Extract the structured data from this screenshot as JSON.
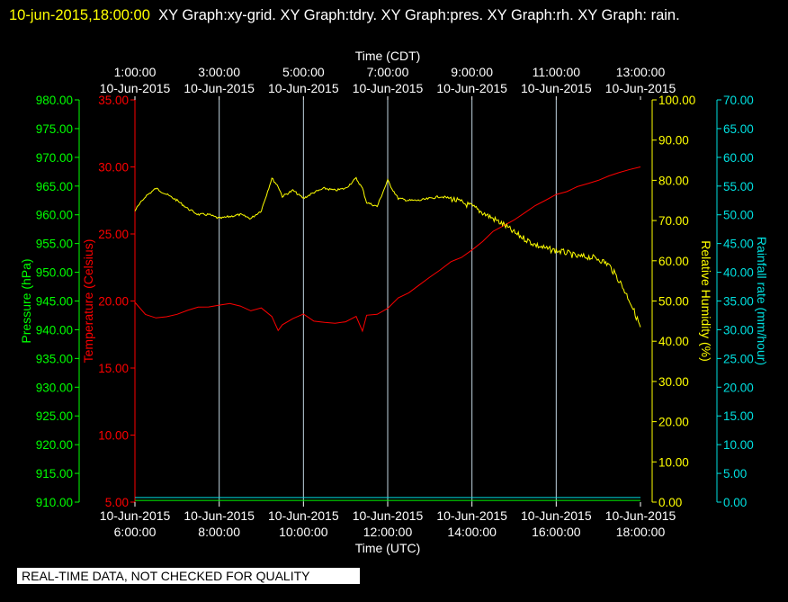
{
  "header": {
    "timestamp": "10-jun-2015,18:00:00",
    "graphs": "XY Graph:xy-grid.  XY Graph:tdry.  XY Graph:pres.  XY Graph:rh.  XY Graph: rain."
  },
  "banner": "REAL-TIME DATA, NOT CHECKED FOR QUALITY",
  "colors": {
    "background": "#000000",
    "grid": "#c0d4e0",
    "temperature": "#ff0000",
    "pressure": "#00ff00",
    "humidity": "#ffff00",
    "rain": "#00e0e0",
    "text": "#ffffff"
  },
  "chart_data": {
    "type": "line",
    "top_axis": {
      "title": "Time (CDT)",
      "ticks": [
        {
          "time": "1:00:00",
          "date": "10-Jun-2015"
        },
        {
          "time": "3:00:00",
          "date": "10-Jun-2015"
        },
        {
          "time": "5:00:00",
          "date": "10-Jun-2015"
        },
        {
          "time": "7:00:00",
          "date": "10-Jun-2015"
        },
        {
          "time": "9:00:00",
          "date": "10-Jun-2015"
        },
        {
          "time": "11:00:00",
          "date": "10-Jun-2015"
        },
        {
          "time": "13:00:00",
          "date": "10-Jun-2015"
        }
      ]
    },
    "bottom_axis": {
      "title": "Time (UTC)",
      "range": [
        6,
        18
      ],
      "tick_values": [
        6,
        8,
        10,
        12,
        14,
        16,
        18
      ],
      "ticks": [
        {
          "date": "10-Jun-2015",
          "time": "6:00:00"
        },
        {
          "date": "10-Jun-2015",
          "time": "8:00:00"
        },
        {
          "date": "10-Jun-2015",
          "time": "10:00:00"
        },
        {
          "date": "10-Jun-2015",
          "time": "12:00:00"
        },
        {
          "date": "10-Jun-2015",
          "time": "14:00:00"
        },
        {
          "date": "10-Jun-2015",
          "time": "16:00:00"
        },
        {
          "date": "10-Jun-2015",
          "time": "18:00:00"
        }
      ]
    },
    "grid": true,
    "axes": {
      "pressure": {
        "label": "Pressure (hPa)",
        "range": [
          910,
          980
        ],
        "ticks": [
          "980.00",
          "975.00",
          "970.00",
          "965.00",
          "960.00",
          "955.00",
          "950.00",
          "945.00",
          "940.00",
          "935.00",
          "930.00",
          "925.00",
          "920.00",
          "915.00",
          "910.00"
        ]
      },
      "temperature": {
        "label": "Temperature (Celsius)",
        "range": [
          5,
          35
        ],
        "ticks": [
          "35.00",
          "30.00",
          "25.00",
          "20.00",
          "15.00",
          "10.00",
          "5.00"
        ]
      },
      "humidity": {
        "label": "Relative Humidity (%)",
        "range": [
          0,
          100
        ],
        "ticks": [
          "100.00",
          "90.00",
          "80.00",
          "70.00",
          "60.00",
          "50.00",
          "40.00",
          "30.00",
          "20.00",
          "10.00",
          "0.00"
        ]
      },
      "rain": {
        "label": "Rainfall rate (mm/hour)",
        "range": [
          0,
          70
        ],
        "ticks": [
          "70.00",
          "65.00",
          "60.00",
          "55.00",
          "50.00",
          "45.00",
          "40.00",
          "35.00",
          "30.00",
          "25.00",
          "20.00",
          "15.00",
          "10.00",
          "5.00",
          "0.00"
        ]
      }
    },
    "series": [
      {
        "key": "temperature",
        "axis": "temperature",
        "x": [
          6.0,
          6.25,
          6.5,
          6.75,
          7.0,
          7.25,
          7.5,
          7.75,
          8.0,
          8.25,
          8.5,
          8.75,
          9.0,
          9.25,
          9.4,
          9.5,
          9.75,
          10.0,
          10.25,
          10.5,
          10.75,
          11.0,
          11.25,
          11.4,
          11.5,
          11.75,
          12.0,
          12.25,
          12.5,
          12.75,
          13.0,
          13.25,
          13.5,
          13.75,
          14.0,
          14.25,
          14.5,
          14.75,
          15.0,
          15.25,
          15.5,
          15.75,
          16.0,
          16.25,
          16.5,
          16.75,
          17.0,
          17.25,
          17.5,
          17.75,
          18.0
        ],
        "y": [
          19.9,
          19.0,
          18.7,
          18.8,
          19.0,
          19.3,
          19.5,
          19.6,
          19.7,
          19.8,
          19.6,
          19.3,
          19.5,
          18.8,
          17.8,
          18.2,
          18.7,
          19.0,
          18.5,
          18.4,
          18.3,
          18.4,
          18.9,
          17.8,
          18.9,
          19.0,
          19.5,
          20.2,
          20.6,
          21.2,
          21.8,
          22.3,
          22.9,
          23.3,
          23.8,
          24.4,
          25.2,
          25.6,
          26.0,
          26.6,
          27.1,
          27.5,
          27.9,
          28.2,
          28.5,
          28.8,
          29.0,
          29.3,
          29.6,
          29.8,
          30.0
        ]
      },
      {
        "key": "humidity",
        "axis": "humidity",
        "x": [
          6.0,
          6.25,
          6.5,
          6.75,
          7.0,
          7.25,
          7.5,
          7.75,
          8.0,
          8.25,
          8.5,
          8.75,
          9.0,
          9.25,
          9.4,
          9.5,
          9.75,
          10.0,
          10.25,
          10.5,
          10.75,
          11.0,
          11.25,
          11.4,
          11.5,
          11.75,
          12.0,
          12.1,
          12.25,
          12.5,
          12.75,
          13.0,
          13.25,
          13.5,
          13.75,
          14.0,
          14.25,
          14.5,
          14.75,
          15.0,
          15.25,
          15.5,
          15.75,
          16.0,
          16.25,
          16.5,
          16.75,
          17.0,
          17.25,
          17.5,
          17.75,
          18.0
        ],
        "y": [
          72.5,
          76.0,
          78.0,
          76.5,
          75.0,
          73.0,
          71.5,
          71.5,
          70.5,
          71.0,
          71.5,
          70.5,
          72.5,
          80.5,
          78.5,
          76.0,
          77.5,
          75.5,
          77.0,
          78.0,
          77.5,
          78.0,
          80.5,
          78.0,
          74.5,
          73.5,
          80.0,
          78.0,
          75.5,
          75.0,
          75.0,
          75.5,
          76.0,
          75.5,
          74.5,
          73.5,
          72.0,
          70.5,
          69.0,
          67.0,
          65.5,
          64.0,
          63.0,
          62.5,
          62.0,
          61.0,
          61.0,
          60.5,
          59.0,
          55.0,
          50.0,
          43.5
        ]
      },
      {
        "key": "pressure",
        "axis": "pressure",
        "x": [
          6.0,
          18.0
        ],
        "y": [
          910.3,
          910.3
        ]
      },
      {
        "key": "rain",
        "axis": "rain",
        "x": [
          6.0,
          18.0
        ],
        "y": [
          0.8,
          0.8
        ]
      }
    ]
  }
}
